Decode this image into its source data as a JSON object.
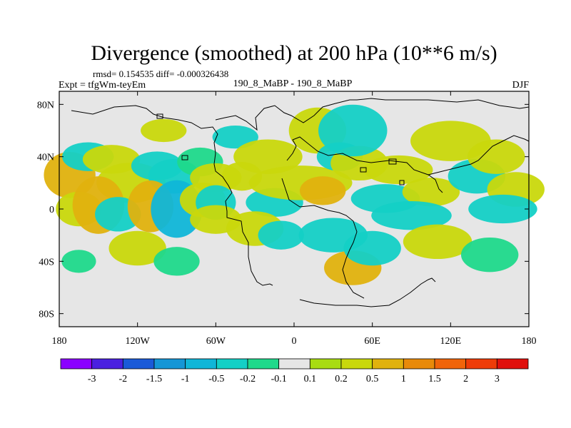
{
  "chart_data": {
    "type": "heatmap",
    "title": "Divergence (smoothed) at 200 hPa (10**6 m/s)",
    "stats_label": "rmsd= 0.154535  diff= -0.000326438",
    "experiment_label": "Expt = tfgWm-teyEm",
    "comparison_label": "190_8_MaBP - 190_8_MaBP",
    "season_label": "DJF",
    "x_range": [
      -180,
      180
    ],
    "y_range": [
      -90,
      90
    ],
    "x_ticks": [
      {
        "value": -180,
        "label": "180"
      },
      {
        "value": -120,
        "label": "120W"
      },
      {
        "value": -60,
        "label": "60W"
      },
      {
        "value": 0,
        "label": "0"
      },
      {
        "value": 60,
        "label": "60E"
      },
      {
        "value": 120,
        "label": "120E"
      },
      {
        "value": 180,
        "label": "180"
      }
    ],
    "y_ticks": [
      {
        "value": 80,
        "label": "80N"
      },
      {
        "value": 40,
        "label": "40N"
      },
      {
        "value": 0,
        "label": "0"
      },
      {
        "value": -40,
        "label": "40S"
      },
      {
        "value": -80,
        "label": "80S"
      }
    ],
    "colorbar": {
      "colors": [
        "#8b00ff",
        "#4a20e0",
        "#1a5ad8",
        "#1596d6",
        "#10b6d8",
        "#14d0c6",
        "#1fd98b",
        "#e6e6e6",
        "#a8dc12",
        "#c9d80c",
        "#e0b20e",
        "#e88a0a",
        "#f0640a",
        "#ee3c08",
        "#e0100c"
      ],
      "labels": [
        "-3",
        "-2",
        "-1.5",
        "-1",
        "-0.5",
        "-0.2",
        "-0.1",
        "0.1",
        "0.2",
        "0.5",
        "1",
        "1.5",
        "2",
        "3"
      ]
    },
    "field_features": [
      {
        "lon": -172,
        "lat": 26,
        "rlon": 9,
        "rlat": 8,
        "value": 0.6
      },
      {
        "lon": -158,
        "lat": 40,
        "rlon": 9,
        "rlat": 5,
        "value": -0.25
      },
      {
        "lon": -140,
        "lat": 38,
        "rlon": 10,
        "rlat": 5,
        "value": 0.25
      },
      {
        "lon": -125,
        "lat": 20,
        "rlon": 12,
        "rlat": 7,
        "value": 0.3
      },
      {
        "lon": -105,
        "lat": 33,
        "rlon": 9,
        "rlat": 5,
        "value": -0.25
      },
      {
        "lon": -92,
        "lat": 25,
        "rlon": 9,
        "rlat": 6,
        "value": -0.3
      },
      {
        "lon": -72,
        "lat": 36,
        "rlon": 8,
        "rlat": 5,
        "value": -0.2
      },
      {
        "lon": -60,
        "lat": 24,
        "rlon": 9,
        "rlat": 5,
        "value": 0.25
      },
      {
        "lon": -165,
        "lat": 0,
        "rlon": 8,
        "rlat": 6,
        "value": 0.4
      },
      {
        "lon": -150,
        "lat": 3,
        "rlon": 9,
        "rlat": 10,
        "value": 0.6
      },
      {
        "lon": -135,
        "lat": -4,
        "rlon": 8,
        "rlat": 6,
        "value": -0.4
      },
      {
        "lon": -110,
        "lat": 2,
        "rlon": 8,
        "rlat": 9,
        "value": 0.7
      },
      {
        "lon": -90,
        "lat": 0,
        "rlon": 9,
        "rlat": 10,
        "value": -0.7
      },
      {
        "lon": -70,
        "lat": 7,
        "rlon": 8,
        "rlat": 6,
        "value": 0.25
      },
      {
        "lon": -60,
        "lat": 5,
        "rlon": 7,
        "rlat": 6,
        "value": -0.3
      },
      {
        "lon": -40,
        "lat": 25,
        "rlon": 7,
        "rlat": 5,
        "value": 0.3
      },
      {
        "lon": -45,
        "lat": 55,
        "rlon": 8,
        "rlat": 4,
        "value": -0.25
      },
      {
        "lon": -20,
        "lat": 40,
        "rlon": 12,
        "rlat": 6,
        "value": 0.25
      },
      {
        "lon": -15,
        "lat": 5,
        "rlon": 10,
        "rlat": 5,
        "value": -0.3
      },
      {
        "lon": 5,
        "lat": 20,
        "rlon": 18,
        "rlat": 6,
        "value": 0.45
      },
      {
        "lon": 22,
        "lat": 14,
        "rlon": 8,
        "rlat": 5,
        "value": 0.7
      },
      {
        "lon": 18,
        "lat": 60,
        "rlon": 10,
        "rlat": 8,
        "value": 0.3
      },
      {
        "lon": 35,
        "lat": 40,
        "rlon": 8,
        "rlat": 5,
        "value": -0.3
      },
      {
        "lon": 50,
        "lat": 35,
        "rlon": 10,
        "rlat": 6,
        "value": 0.4
      },
      {
        "lon": 45,
        "lat": 60,
        "rlon": 12,
        "rlat": 9,
        "value": -0.25
      },
      {
        "lon": 80,
        "lat": 30,
        "rlon": 12,
        "rlat": 5,
        "value": 0.3
      },
      {
        "lon": 70,
        "lat": 8,
        "rlon": 12,
        "rlat": 5,
        "value": -0.25
      },
      {
        "lon": 105,
        "lat": 13,
        "rlon": 10,
        "rlat": 5,
        "value": 0.3
      },
      {
        "lon": 120,
        "lat": 52,
        "rlon": 14,
        "rlat": 7,
        "value": 0.3
      },
      {
        "lon": 140,
        "lat": 25,
        "rlon": 10,
        "rlat": 6,
        "value": -0.3
      },
      {
        "lon": 155,
        "lat": 40,
        "rlon": 10,
        "rlat": 6,
        "value": 0.25
      },
      {
        "lon": 170,
        "lat": 15,
        "rlon": 10,
        "rlat": 6,
        "value": 0.4
      },
      {
        "lon": 160,
        "lat": 0,
        "rlon": 12,
        "rlat": 5,
        "value": -0.3
      },
      {
        "lon": -60,
        "lat": -8,
        "rlon": 9,
        "rlat": 5,
        "value": 0.3
      },
      {
        "lon": -30,
        "lat": -15,
        "rlon": 10,
        "rlat": 6,
        "value": 0.3
      },
      {
        "lon": -10,
        "lat": -20,
        "rlon": 8,
        "rlat": 5,
        "value": -0.3
      },
      {
        "lon": 30,
        "lat": -20,
        "rlon": 12,
        "rlat": 6,
        "value": -0.3
      },
      {
        "lon": 45,
        "lat": -45,
        "rlon": 10,
        "rlat": 6,
        "value": 0.7
      },
      {
        "lon": 60,
        "lat": -30,
        "rlon": 10,
        "rlat": 6,
        "value": -0.25
      },
      {
        "lon": 90,
        "lat": -5,
        "rlon": 14,
        "rlat": 5,
        "value": -0.25
      },
      {
        "lon": 110,
        "lat": -25,
        "rlon": 12,
        "rlat": 6,
        "value": 0.3
      },
      {
        "lon": 150,
        "lat": -35,
        "rlon": 10,
        "rlat": 6,
        "value": -0.2
      },
      {
        "lon": -120,
        "lat": -30,
        "rlon": 10,
        "rlat": 6,
        "value": 0.25
      },
      {
        "lon": -90,
        "lat": -40,
        "rlon": 8,
        "rlat": 5,
        "value": -0.2
      },
      {
        "lon": -165,
        "lat": -40,
        "rlon": 6,
        "rlat": 4,
        "value": -0.2
      },
      {
        "lon": -100,
        "lat": 60,
        "rlon": 8,
        "rlat": 4,
        "value": 0.25
      }
    ]
  }
}
